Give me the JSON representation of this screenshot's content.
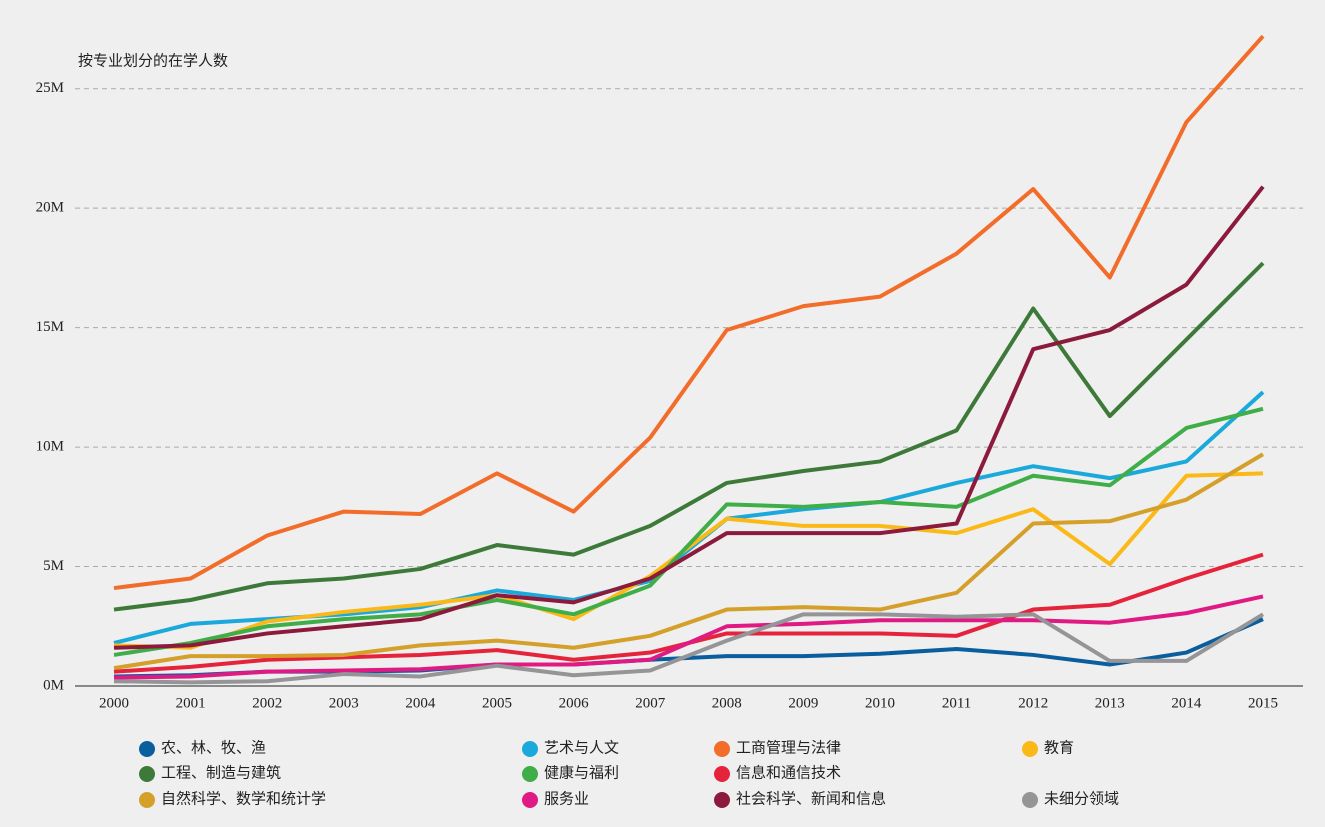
{
  "chart_data": {
    "type": "line",
    "title": "按专业划分的在学人数",
    "x": [
      "2000",
      "2001",
      "2002",
      "2003",
      "2004",
      "2005",
      "2006",
      "2007",
      "2008",
      "2009",
      "2010",
      "2011",
      "2012",
      "2013",
      "2014",
      "2015"
    ],
    "ylim": [
      0,
      27.5
    ],
    "yticks": [
      {
        "value": 0,
        "label": "0M"
      },
      {
        "value": 5,
        "label": "5M"
      },
      {
        "value": 10,
        "label": "10M"
      },
      {
        "value": 15,
        "label": "15M"
      },
      {
        "value": 20,
        "label": "20M"
      },
      {
        "value": 25,
        "label": "25M"
      }
    ],
    "grid": true,
    "series": [
      {
        "name": "农、林、牧、渔",
        "color": "#0a5e9e",
        "values": [
          0.4,
          0.45,
          0.6,
          0.6,
          0.65,
          0.9,
          0.9,
          1.1,
          1.25,
          1.25,
          1.35,
          1.55,
          1.3,
          0.9,
          1.4,
          2.8
        ]
      },
      {
        "name": "艺术与人文",
        "color": "#1ba9dc",
        "values": [
          1.8,
          2.6,
          2.8,
          3.0,
          3.3,
          4.0,
          3.6,
          4.4,
          7.0,
          7.4,
          7.7,
          8.5,
          9.2,
          8.7,
          9.4,
          12.3
        ]
      },
      {
        "name": "工商管理与法律",
        "color": "#f26c2a",
        "values": [
          4.1,
          4.5,
          6.3,
          7.3,
          7.2,
          8.9,
          7.3,
          10.4,
          14.9,
          15.9,
          16.3,
          18.1,
          20.8,
          17.1,
          23.6,
          27.2
        ]
      },
      {
        "name": "教育",
        "color": "#fbb917",
        "values": [
          1.7,
          1.6,
          2.7,
          3.1,
          3.4,
          3.8,
          2.8,
          4.6,
          7.0,
          6.7,
          6.7,
          6.4,
          7.4,
          5.1,
          8.8,
          8.9
        ]
      },
      {
        "name": "工程、制造与建筑",
        "color": "#3d7a3a",
        "values": [
          3.2,
          3.6,
          4.3,
          4.5,
          4.9,
          5.9,
          5.5,
          6.7,
          8.5,
          9.0,
          9.4,
          10.7,
          15.8,
          11.3,
          14.5,
          17.7
        ]
      },
      {
        "name": "健康与福利",
        "color": "#3fae49",
        "values": [
          1.3,
          1.8,
          2.5,
          2.8,
          3.0,
          3.6,
          3.0,
          4.2,
          7.6,
          7.5,
          7.7,
          7.5,
          8.8,
          8.4,
          10.8,
          11.6
        ]
      },
      {
        "name": "信息和通信技术",
        "color": "#e5243b",
        "values": [
          0.6,
          0.8,
          1.1,
          1.2,
          1.3,
          1.5,
          1.1,
          1.4,
          2.2,
          2.2,
          2.2,
          2.1,
          3.2,
          3.4,
          4.5,
          5.5
        ]
      },
      {
        "name": "自然科学、数学和统计学",
        "color": "#d4a02a",
        "values": [
          0.75,
          1.25,
          1.25,
          1.3,
          1.7,
          1.9,
          1.6,
          2.1,
          3.2,
          3.3,
          3.2,
          3.9,
          6.8,
          6.9,
          7.8,
          9.7
        ]
      },
      {
        "name": "服务业",
        "color": "#e01a83",
        "values": [
          0.35,
          0.4,
          0.6,
          0.65,
          0.7,
          0.9,
          0.9,
          1.1,
          2.5,
          2.6,
          2.75,
          2.75,
          2.75,
          2.65,
          3.05,
          3.75
        ]
      },
      {
        "name": "社会科学、新闻和信息",
        "color": "#8b1a3c",
        "values": [
          1.6,
          1.7,
          2.2,
          2.5,
          2.8,
          3.8,
          3.5,
          4.5,
          6.4,
          6.4,
          6.4,
          6.8,
          14.1,
          14.9,
          16.8,
          20.9
        ]
      },
      {
        "name": "未细分领域",
        "color": "#959598",
        "values": [
          0.2,
          0.15,
          0.2,
          0.5,
          0.4,
          0.85,
          0.45,
          0.65,
          1.9,
          3.0,
          3.0,
          2.9,
          3.0,
          1.05,
          1.05,
          3.0
        ]
      }
    ]
  }
}
